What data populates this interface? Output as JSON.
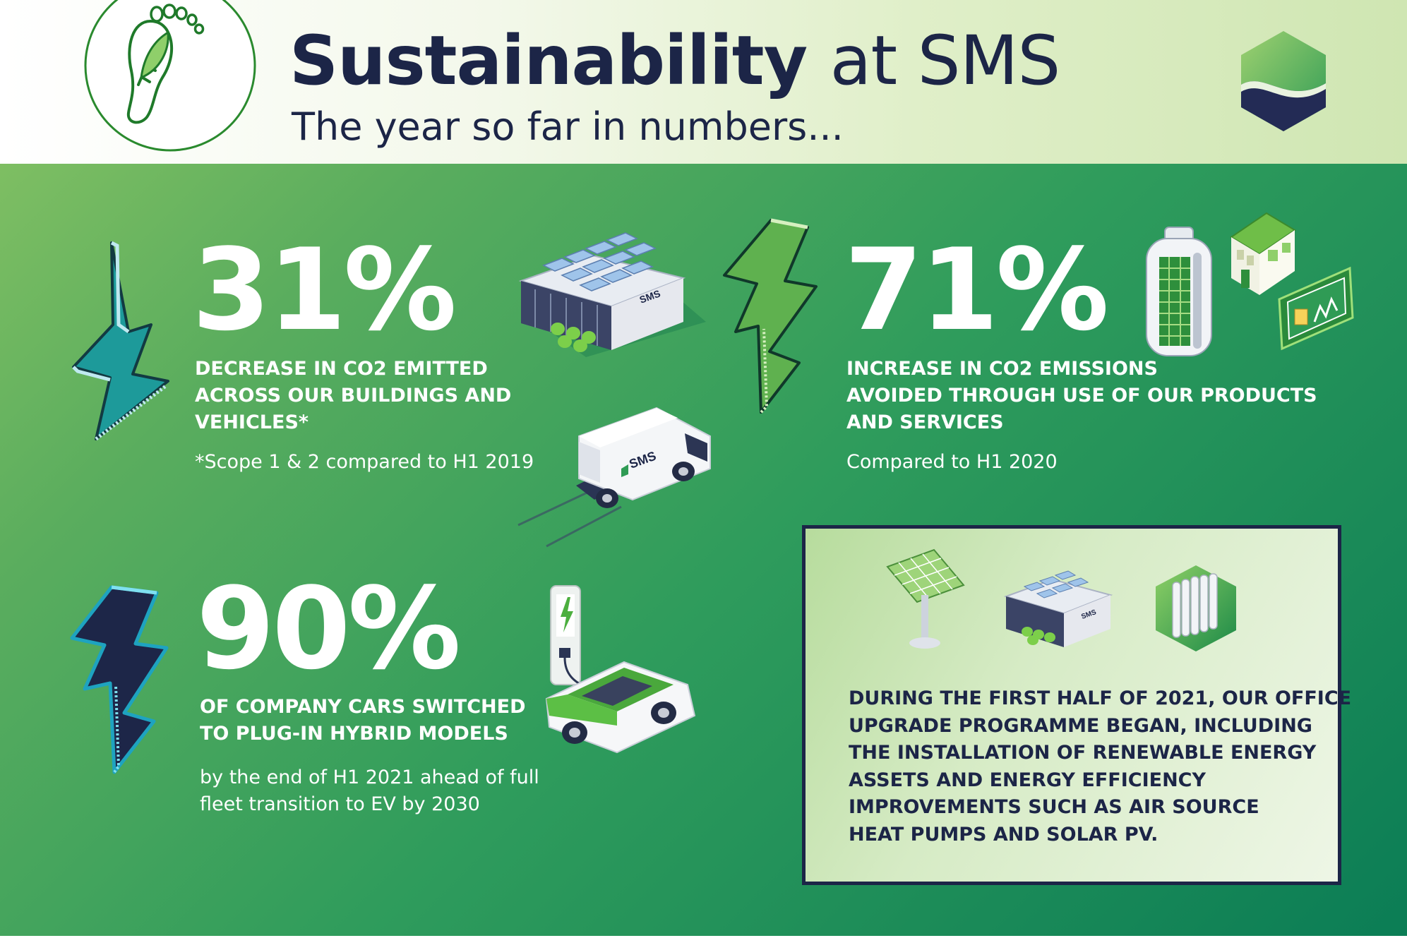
{
  "header": {
    "title_bold": "Sustainability",
    "title_rest": "at SMS",
    "subtitle": "The year so far in numbers..."
  },
  "stats": [
    {
      "value": "31%",
      "headline_lines": [
        "DECREASE IN CO2 EMITTED",
        "ACROSS OUR BUILDINGS AND",
        "VEHICLES*"
      ],
      "note_lines": [
        "*Scope 1 & 2 compared to H1 2019"
      ],
      "arrow": "down"
    },
    {
      "value": "71%",
      "headline_lines": [
        "INCREASE IN CO2 EMISSIONS",
        "AVOIDED THROUGH USE OF OUR PRODUCTS",
        "AND SERVICES"
      ],
      "note_lines": [
        "Compared to H1 2020"
      ],
      "arrow": "up"
    },
    {
      "value": "90%",
      "headline_lines": [
        "OF COMPANY CARS SWITCHED",
        "TO PLUG-IN HYBRID MODELS"
      ],
      "note_lines": [
        "by the end of H1 2021 ahead of full",
        "fleet transition to EV by 2030"
      ],
      "arrow": "up"
    }
  ],
  "info_box": {
    "lines": [
      "DURING THE FIRST HALF OF 2021, OUR OFFICE",
      "UPGRADE PROGRAMME BEGAN, INCLUDING",
      "THE INSTALLATION OF RENEWABLE ENERGY",
      "ASSETS AND ENERGY EFFICIENCY",
      "IMPROVEMENTS SUCH AS AIR SOURCE",
      "HEAT PUMPS AND SOLAR PV."
    ]
  },
  "illustrations": {
    "building_sign": "SMS",
    "van_sign": "SMS",
    "small_building_sign": "SMS"
  },
  "icons": [
    "footprint-leaf-icon",
    "sms-logo-icon",
    "lightning-arrow-down-icon",
    "lightning-arrow-up-icon",
    "battery-icon",
    "house-icon",
    "energy-display-icon",
    "ev-charger-icon",
    "solar-panel-icon",
    "radiator-icon"
  ],
  "colors": {
    "navy": "#1c2547",
    "white_text": "#ffffff",
    "footprint_green": "#2a8a2e",
    "background_light": "#8cc564",
    "background_dark": "#0b7d55"
  }
}
